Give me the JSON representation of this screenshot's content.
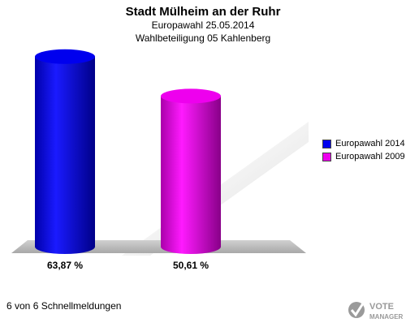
{
  "header": {
    "title": "Stadt Mülheim an der Ruhr",
    "subtitle": "Europawahl 25.05.2014",
    "subtitle2": "Wahlbeteiligung 05 Kahlenberg"
  },
  "chart_data": {
    "type": "bar",
    "style": "3d-cylinder",
    "categories": [
      "Europawahl 2014",
      "Europawahl 2009"
    ],
    "values": [
      63.87,
      50.61
    ],
    "value_labels": [
      "63,87 %",
      "50,61 %"
    ],
    "colors": [
      "#0000ee",
      "#ee00ee"
    ],
    "ylim": [
      0,
      75
    ],
    "grid": false,
    "legend": {
      "position": "right",
      "items": [
        {
          "label": "Europawahl 2014",
          "color": "#0000ee"
        },
        {
          "label": "Europawahl 2009",
          "color": "#ee00ee"
        }
      ]
    }
  },
  "footer": {
    "text": "6 von 6 Schnellmeldungen"
  },
  "logo": {
    "text_top": "VOTE",
    "text_bottom": "MANAGER",
    "icon": "vote-check-icon"
  }
}
